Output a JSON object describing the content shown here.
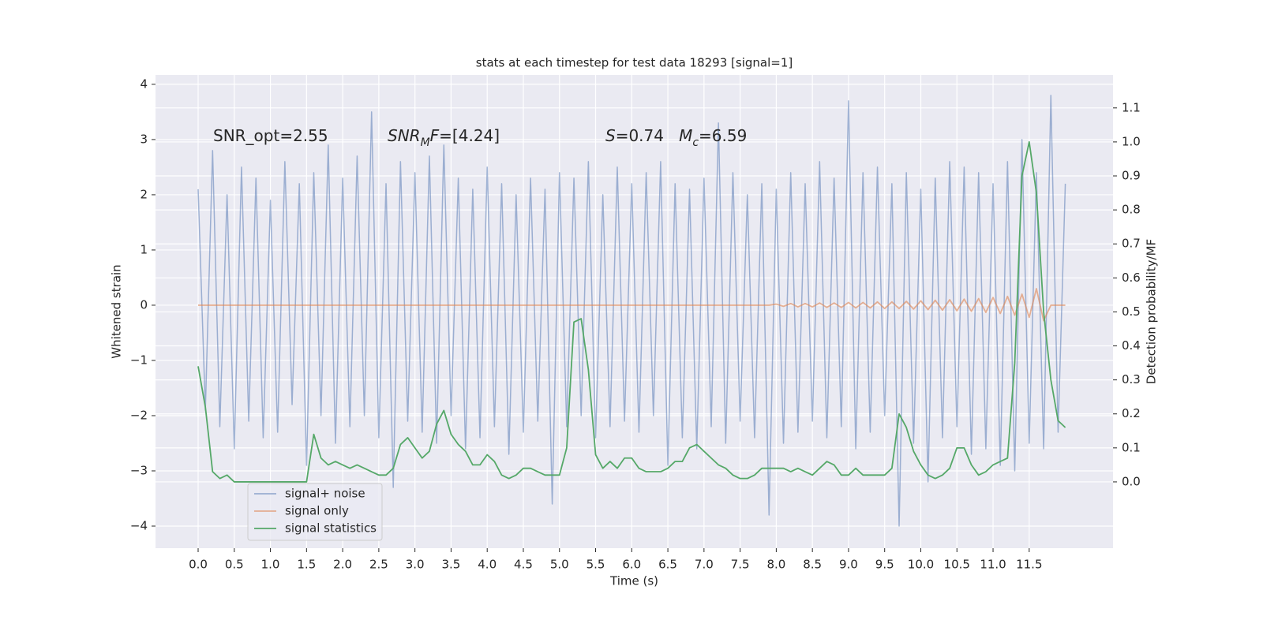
{
  "chart_data": {
    "type": "line",
    "title": "stats at each timestep for test data 18293 [signal=1]",
    "xlabel": "Time (s)",
    "ylabel": "Whitened strain",
    "y2label": "Detection probability/MF",
    "annotations": [
      [
        {
          "text": "SNR_opt=2.55"
        }
      ],
      [
        {
          "text": "SNR",
          "italic": true
        },
        {
          "text": "M",
          "italic": true,
          "sub": true
        },
        {
          "text": "F",
          "italic": true
        },
        {
          "text": "=[4.24]"
        }
      ],
      [
        {
          "text": "S",
          "italic": true
        },
        {
          "text": "=0.74   "
        },
        {
          "text": "M",
          "italic": true
        },
        {
          "text": "c",
          "italic": true,
          "sub": true
        },
        {
          "text": "=6.59"
        }
      ]
    ],
    "x": [
      0,
      0.1,
      0.2,
      0.3,
      0.4,
      0.5,
      0.6,
      0.7,
      0.8,
      0.9,
      1,
      1.1,
      1.2,
      1.3,
      1.4,
      1.5,
      1.6,
      1.7,
      1.8,
      1.9,
      2,
      2.1,
      2.2,
      2.3,
      2.4,
      2.5,
      2.6,
      2.7,
      2.8,
      2.9,
      3,
      3.1,
      3.2,
      3.3,
      3.4,
      3.5,
      3.6,
      3.7,
      3.8,
      3.9,
      4,
      4.1,
      4.2,
      4.3,
      4.4,
      4.5,
      4.6,
      4.7,
      4.8,
      4.9,
      5,
      5.1,
      5.2,
      5.3,
      5.4,
      5.5,
      5.6,
      5.7,
      5.8,
      5.9,
      6,
      6.1,
      6.2,
      6.3,
      6.4,
      6.5,
      6.6,
      6.7,
      6.8,
      6.9,
      7,
      7.1,
      7.2,
      7.3,
      7.4,
      7.5,
      7.6,
      7.7,
      7.8,
      7.9,
      8,
      8.1,
      8.2,
      8.3,
      8.4,
      8.5,
      8.6,
      8.7,
      8.8,
      8.9,
      9,
      9.1,
      9.2,
      9.3,
      9.4,
      9.5,
      9.6,
      9.7,
      9.8,
      9.9,
      10,
      10.1,
      10.2,
      10.3,
      10.4,
      10.5,
      10.6,
      10.7,
      10.8,
      10.9,
      11,
      11.1,
      11.2,
      11.3,
      11.4,
      11.5,
      11.6,
      11.7,
      11.8,
      11.9,
      12
    ],
    "series": [
      {
        "name": "signal+ noise",
        "color": "#4c72b0",
        "opacity": 0.5,
        "values": [
          2.1,
          -1.9,
          2.8,
          -2.2,
          2.0,
          -2.6,
          2.5,
          -2.1,
          2.3,
          -2.4,
          1.9,
          -2.3,
          2.6,
          -1.8,
          2.2,
          -2.9,
          2.4,
          -2.0,
          2.9,
          -2.5,
          2.3,
          -2.2,
          2.7,
          -2.0,
          3.5,
          -2.4,
          2.2,
          -3.3,
          2.6,
          -2.1,
          2.4,
          -2.3,
          2.7,
          -2.5,
          2.9,
          -2.0,
          2.3,
          -2.6,
          2.1,
          -2.4,
          2.5,
          -2.2,
          2.2,
          -2.7,
          2.0,
          -2.3,
          2.3,
          -2.1,
          2.1,
          -3.6,
          2.4,
          -2.2,
          2.3,
          -2.0,
          2.6,
          -2.4,
          2.0,
          -2.2,
          2.5,
          -2.1,
          2.2,
          -2.3,
          2.4,
          -2.0,
          2.6,
          -2.9,
          2.2,
          -2.4,
          2.1,
          -2.6,
          2.3,
          -2.2,
          3.3,
          -2.5,
          2.4,
          -2.1,
          2.0,
          -2.4,
          2.2,
          -3.8,
          2.1,
          -2.5,
          2.4,
          -2.3,
          2.2,
          -2.1,
          2.6,
          -2.4,
          2.3,
          -2.2,
          3.7,
          -2.6,
          2.4,
          -2.3,
          2.5,
          -2.0,
          2.2,
          -4.0,
          2.4,
          -2.5,
          2.1,
          -3.2,
          2.3,
          -2.4,
          2.6,
          -2.2,
          2.5,
          -2.7,
          2.4,
          -2.6,
          2.2,
          -2.9,
          2.6,
          -3.0,
          3.0,
          -2.5,
          2.4,
          -2.6,
          3.8,
          -2.3,
          2.2
        ]
      },
      {
        "name": "signal only",
        "color": "#dd8452",
        "opacity": 0.6,
        "values": [
          0,
          0,
          0,
          0,
          0,
          0,
          0,
          0,
          0,
          0,
          0,
          0,
          0,
          0,
          0,
          0,
          0,
          0,
          0,
          0,
          0,
          0,
          0,
          0,
          0,
          0,
          0,
          0,
          0,
          0,
          0,
          0,
          0,
          0,
          0,
          0,
          0,
          0,
          0,
          0,
          0,
          0,
          0,
          0,
          0,
          0,
          0,
          0,
          0,
          0,
          0,
          0,
          0,
          0,
          0,
          0,
          0,
          0,
          0,
          0,
          0,
          0,
          0,
          0,
          0,
          0,
          0,
          0,
          0,
          0,
          0,
          0,
          0,
          0,
          0,
          0,
          0,
          0,
          0,
          0,
          0.02,
          -0.02,
          0.03,
          -0.03,
          0.03,
          -0.03,
          0.04,
          -0.04,
          0.04,
          -0.04,
          0.05,
          -0.05,
          0.05,
          -0.05,
          0.06,
          -0.06,
          0.06,
          -0.06,
          0.07,
          -0.07,
          0.08,
          -0.08,
          0.09,
          -0.09,
          0.1,
          -0.1,
          0.11,
          -0.11,
          0.12,
          -0.13,
          0.14,
          -0.15,
          0.16,
          -0.18,
          0.2,
          -0.22,
          0.3,
          -0.28,
          0,
          0,
          0
        ]
      },
      {
        "name": "signal statistics",
        "color": "#55a868",
        "opacity": 1,
        "axis": "y2",
        "values": [
          0.34,
          0.22,
          0.03,
          0.01,
          0.02,
          0.0,
          0.0,
          0.0,
          0.0,
          0.0,
          0.0,
          0.0,
          0.0,
          0.0,
          0.0,
          0.0,
          0.14,
          0.07,
          0.05,
          0.06,
          0.05,
          0.04,
          0.05,
          0.04,
          0.03,
          0.02,
          0.02,
          0.04,
          0.11,
          0.13,
          0.1,
          0.07,
          0.09,
          0.17,
          0.21,
          0.14,
          0.11,
          0.09,
          0.05,
          0.05,
          0.08,
          0.06,
          0.02,
          0.01,
          0.02,
          0.04,
          0.04,
          0.03,
          0.02,
          0.02,
          0.02,
          0.1,
          0.47,
          0.48,
          0.33,
          0.08,
          0.04,
          0.06,
          0.04,
          0.07,
          0.07,
          0.04,
          0.03,
          0.03,
          0.03,
          0.04,
          0.06,
          0.06,
          0.1,
          0.11,
          0.09,
          0.07,
          0.05,
          0.04,
          0.02,
          0.01,
          0.01,
          0.02,
          0.04,
          0.04,
          0.04,
          0.04,
          0.03,
          0.04,
          0.03,
          0.02,
          0.04,
          0.06,
          0.05,
          0.02,
          0.02,
          0.04,
          0.02,
          0.02,
          0.02,
          0.02,
          0.04,
          0.2,
          0.16,
          0.09,
          0.05,
          0.02,
          0.01,
          0.02,
          0.04,
          0.1,
          0.1,
          0.05,
          0.02,
          0.03,
          0.05,
          0.06,
          0.07,
          0.35,
          0.9,
          1.0,
          0.85,
          0.5,
          0.3,
          0.18,
          0.16
        ]
      }
    ],
    "xlim": [
      -0.59,
      12.66
    ],
    "xticks": [
      {
        "value": 0,
        "label": "0.0"
      },
      0.5,
      {
        "value": 1,
        "label": "1.0"
      },
      1.5,
      {
        "value": 2,
        "label": "2.0"
      },
      2.5,
      {
        "value": 3,
        "label": "3.0"
      },
      3.5,
      {
        "value": 4,
        "label": "4.0"
      },
      4.5,
      {
        "value": 5,
        "label": "5.0"
      },
      5.5,
      {
        "value": 6,
        "label": "6.0"
      },
      6.5,
      {
        "value": 7,
        "label": "7.0"
      },
      7.5,
      {
        "value": 8,
        "label": "8.0"
      },
      8.5,
      {
        "value": 9,
        "label": "9.0"
      },
      9.5,
      {
        "value": 10,
        "label": "10.0"
      },
      10.5,
      {
        "value": 11,
        "label": "11.0"
      },
      11.5
    ],
    "ylim": [
      -4.4,
      4.17
    ],
    "yticks": [
      {
        "value": -4,
        "label": "−4"
      },
      {
        "value": -3,
        "label": "−3"
      },
      {
        "value": -2,
        "label": "−2"
      },
      {
        "value": -1,
        "label": "−1"
      },
      0,
      1,
      2,
      3,
      4
    ],
    "y2lim": [
      -0.195,
      1.197
    ],
    "y2ticks": [
      {
        "value": 0,
        "label": "0.0"
      },
      0.1,
      0.2,
      0.3,
      0.4,
      0.5,
      0.6,
      0.7,
      0.8,
      0.9,
      {
        "value": 1,
        "label": "1.0"
      },
      1.1
    ],
    "grid": true,
    "legend": "lower left"
  }
}
